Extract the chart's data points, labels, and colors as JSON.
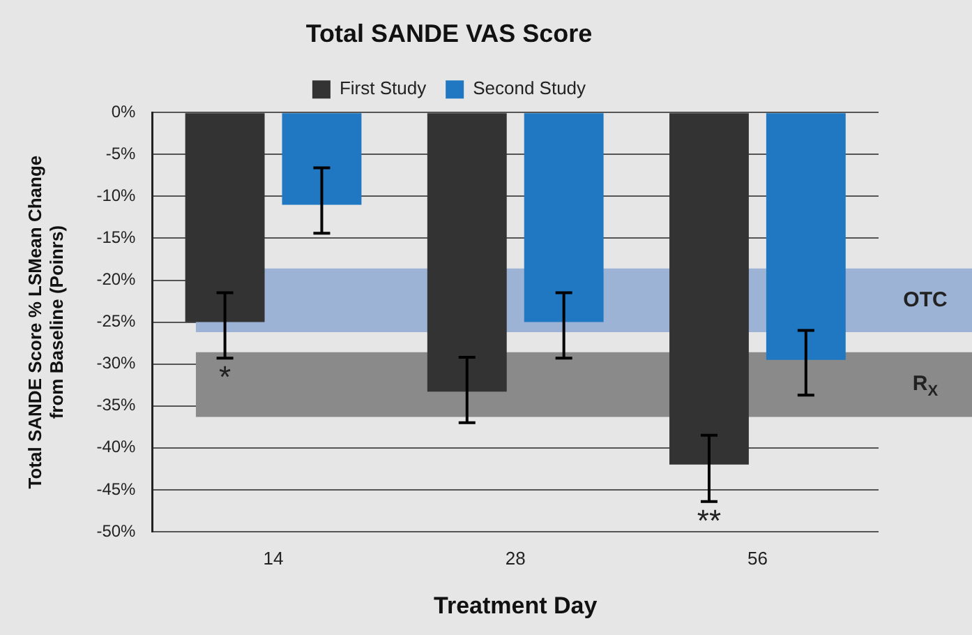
{
  "chart_data": {
    "type": "bar",
    "title": "Total SANDE VAS Score",
    "xlabel": "Treatment Day",
    "ylabel": "Total SANDE Score % LSMean Change\nfrom Baseline (Poinrs)",
    "categories": [
      "14",
      "28",
      "56"
    ],
    "series": [
      {
        "name": "First Study",
        "color": "#333333",
        "values": [
          -25,
          -33.3,
          -42
        ],
        "errors": [
          [
            -29.3,
            -21.5
          ],
          [
            -37,
            -29.2
          ],
          [
            -46.4,
            -38.5
          ]
        ]
      },
      {
        "name": "Second Study",
        "color": "#1f78c1",
        "values": [
          -11,
          -25,
          -29.5
        ],
        "errors": [
          [
            -14.4,
            -6.6
          ],
          [
            -29.3,
            -21.5
          ],
          [
            -33.7,
            -26
          ]
        ]
      }
    ],
    "ylim": [
      -50,
      0
    ],
    "yticks": [
      {
        "value": 0,
        "label": "0%"
      },
      {
        "value": -5,
        "label": "-5%"
      },
      {
        "value": -10,
        "label": "-10%"
      },
      {
        "value": -15,
        "label": "-15%"
      },
      {
        "value": -20,
        "label": "-20%"
      },
      {
        "value": -25,
        "label": "-25%"
      },
      {
        "value": -30,
        "label": "-30%"
      },
      {
        "value": -35,
        "label": "-35%"
      },
      {
        "value": -40,
        "label": "-40%"
      },
      {
        "value": -45,
        "label": "-45%"
      },
      {
        "value": -50,
        "label": "-50%"
      }
    ],
    "bands": [
      {
        "axis": "y",
        "from": -18.6,
        "to": -26.2,
        "label": "OTC",
        "color": "#9db3d6"
      },
      {
        "axis": "y",
        "from": -28.6,
        "to": -36.3,
        "label": "R$_{X}$",
        "color": "#8a8a8a"
      }
    ],
    "annotations": [
      "*",
      "**"
    ],
    "grid": "y",
    "legend": "top"
  }
}
